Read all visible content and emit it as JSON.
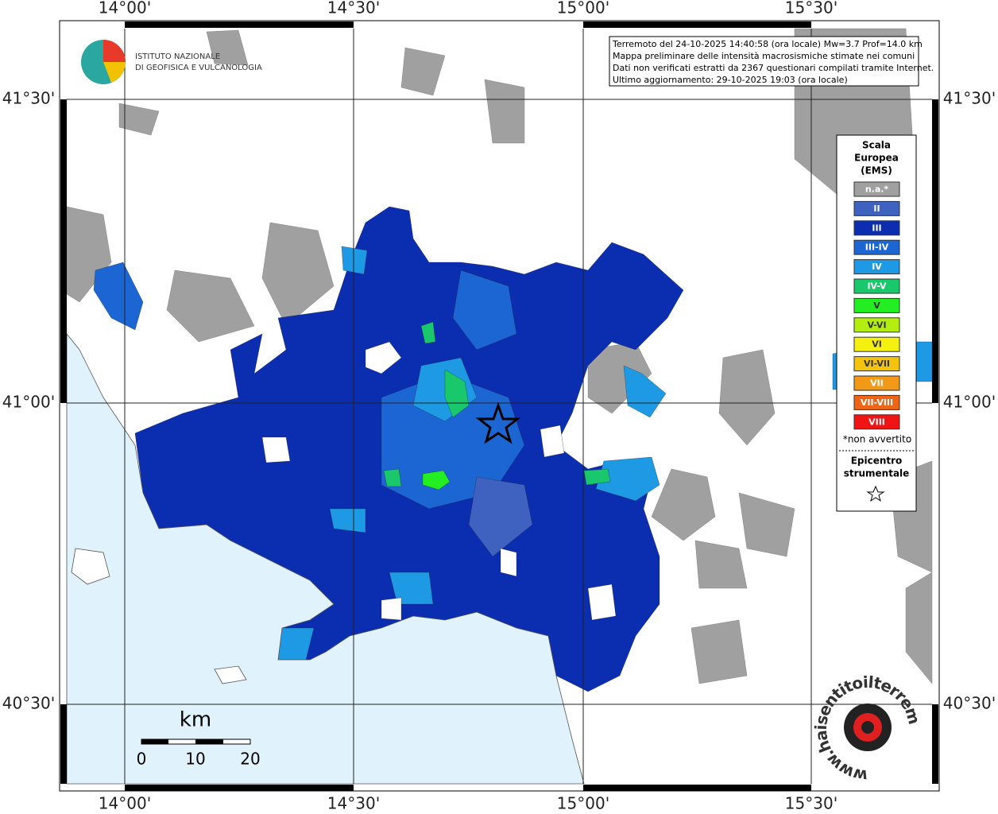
{
  "info": [
    "Terremoto del 24-10-2025 14:40:58 (ora locale) Mw=3.7 Prof=14.0 km",
    "Mappa preliminare delle intensità macrosismiche stimate nei comuni",
    "Dati non verificati estratti da 2367 questionari compilati tramite Internet.",
    "Ultimo aggiornamento: 29-10-2025 19:03 (ora locale)"
  ],
  "logo": [
    "ISTITUTO NAZIONALE",
    "DI GEOFISICA E VULCANOLOGIA"
  ],
  "lon_labels": [
    "14°00'",
    "14°30'",
    "15°00'",
    "15°30'"
  ],
  "lat_labels": [
    "41°30'",
    "41°00'",
    "40°30'"
  ],
  "legend": {
    "title": [
      "Scala",
      "Europea",
      "(EMS)"
    ],
    "items": [
      {
        "label": "n.a.*",
        "color": "#a0a0a0"
      },
      {
        "label": "II",
        "color": "#3f62c0"
      },
      {
        "label": "III",
        "color": "#0b2eb0"
      },
      {
        "label": "III-IV",
        "color": "#1c66d4"
      },
      {
        "label": "IV",
        "color": "#1e9ae4"
      },
      {
        "label": "IV-V",
        "color": "#18c86a"
      },
      {
        "label": "V",
        "color": "#22ee22"
      },
      {
        "label": "V-VI",
        "color": "#b4ee10"
      },
      {
        "label": "VI",
        "color": "#f4f010"
      },
      {
        "label": "VI-VII",
        "color": "#f2c410"
      },
      {
        "label": "VII",
        "color": "#f29a18"
      },
      {
        "label": "VII-VIII",
        "color": "#f06418"
      },
      {
        "label": "VIII",
        "color": "#f01414"
      }
    ],
    "note": "*non avvertito",
    "epicenter": [
      "Epicentro",
      "strumentale"
    ]
  },
  "scale_bar": {
    "unit": "km",
    "ticks": [
      "0",
      "10",
      "20"
    ]
  },
  "watermark": "www.haisentitoilterremoto.it"
}
